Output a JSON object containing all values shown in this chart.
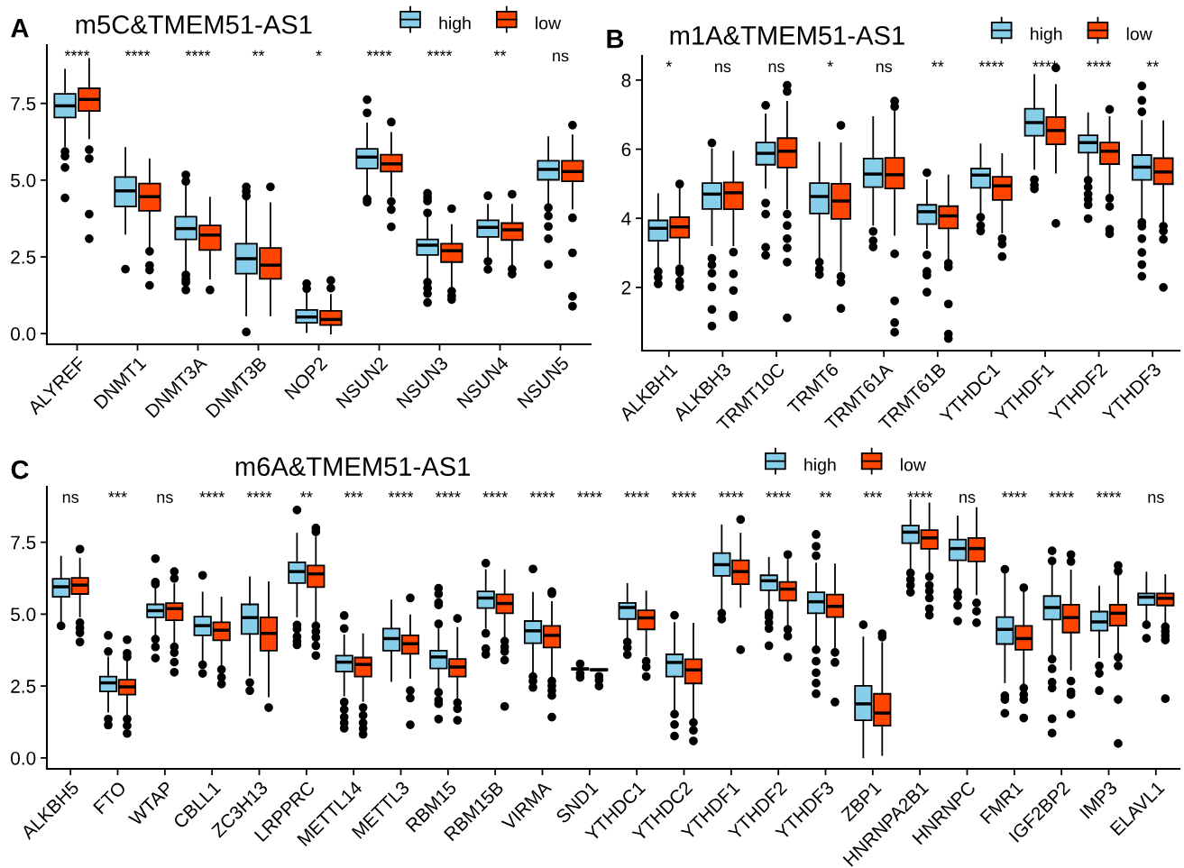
{
  "chart_data": [
    {
      "type": "box",
      "title": "m5C&TMEM51-AS1",
      "legend": "top",
      "ylim": [
        -0.35,
        9.4
      ],
      "yticks": [
        {
          "value": 0,
          "label": "0.0"
        },
        {
          "value": 2.5,
          "label": "2.5"
        },
        {
          "value": 5,
          "label": "5.0"
        },
        {
          "value": 7.5,
          "label": "7.5"
        }
      ],
      "categories": [
        "ALYREF",
        "DNMT1",
        "DNMT3A",
        "DNMT3B",
        "NOP2",
        "NSUN2",
        "NSUN3",
        "NSUN4",
        "NSUN5"
      ],
      "annotations": [
        "A",
        "****",
        "****",
        "****",
        "**",
        "*",
        "****",
        "****",
        "**",
        "ns"
      ],
      "series": [
        {
          "name": "high",
          "color": "#87ceeb",
          "boxes": [
            {
              "low": 6.11,
              "q1": 7.04,
              "median": 7.42,
              "q3": 7.81,
              "high": 8.6,
              "outliers": [
                5.93,
                5.78,
                5.41,
                4.42
              ]
            },
            {
              "low": 3.25,
              "q1": 4.14,
              "median": 4.65,
              "q3": 5.1,
              "high": 6.05,
              "outliers": [
                2.1
              ]
            },
            {
              "low": 2.0,
              "q1": 3.07,
              "median": 3.42,
              "q3": 3.81,
              "high": 4.81,
              "outliers": [
                5.17,
                4.96,
                1.91,
                1.77,
                1.67,
                1.42
              ]
            },
            {
              "low": 0.59,
              "q1": 1.95,
              "median": 2.44,
              "q3": 2.93,
              "high": 4.32,
              "outliers": [
                4.78,
                4.63,
                4.48,
                0.05
              ]
            },
            {
              "low": 0.05,
              "q1": 0.35,
              "median": 0.54,
              "q3": 0.77,
              "high": 1.33,
              "outliers": [
                1.63,
                1.46
              ]
            },
            {
              "low": 4.44,
              "q1": 5.38,
              "median": 5.75,
              "q3": 6.02,
              "high": 6.85,
              "outliers": [
                7.62,
                7.19,
                4.38,
                4.28
              ]
            },
            {
              "low": 1.77,
              "q1": 2.56,
              "median": 2.88,
              "q3": 3.07,
              "high": 3.77,
              "outliers": [
                4.57,
                4.44,
                4.32,
                3.93,
                1.67,
                1.48,
                1.3,
                1.01
              ]
            },
            {
              "low": 2.43,
              "q1": 3.15,
              "median": 3.46,
              "q3": 3.69,
              "high": 4.2,
              "outliers": [
                4.49,
                2.35,
                2.09
              ]
            },
            {
              "low": 4.2,
              "q1": 5.01,
              "median": 5.35,
              "q3": 5.63,
              "high": 6.4,
              "outliers": [
                4.1,
                3.83,
                3.49,
                3.09,
                2.25
              ]
            }
          ]
        },
        {
          "name": "low",
          "color": "#ff4500",
          "boxes": [
            {
              "low": 6.36,
              "q1": 7.25,
              "median": 7.63,
              "q3": 7.99,
              "high": 8.95,
              "outliers": [
                5.99,
                5.7,
                3.89,
                3.09
              ]
            },
            {
              "low": 2.75,
              "q1": 4.0,
              "median": 4.46,
              "q3": 4.89,
              "high": 5.68,
              "outliers": [
                2.68,
                2.22,
                2.07,
                1.57
              ]
            },
            {
              "low": 1.79,
              "q1": 2.72,
              "median": 3.21,
              "q3": 3.52,
              "high": 4.43,
              "outliers": [
                1.42
              ]
            },
            {
              "low": 0.59,
              "q1": 1.78,
              "median": 2.23,
              "q3": 2.79,
              "high": 4.25,
              "outliers": [
                4.78
              ]
            },
            {
              "low": 0.0,
              "q1": 0.28,
              "median": 0.46,
              "q3": 0.74,
              "high": 1.26,
              "outliers": [
                1.73,
                1.48
              ]
            },
            {
              "low": 4.48,
              "q1": 5.28,
              "median": 5.53,
              "q3": 5.83,
              "high": 6.54,
              "outliers": [
                6.89,
                4.3,
                4.04,
                3.48
              ]
            },
            {
              "low": 1.48,
              "q1": 2.33,
              "median": 2.7,
              "q3": 2.93,
              "high": 3.54,
              "outliers": [
                4.07,
                1.38,
                1.23,
                1.11
              ]
            },
            {
              "low": 2.22,
              "q1": 3.05,
              "median": 3.38,
              "q3": 3.6,
              "high": 4.2,
              "outliers": [
                4.54,
                2.1,
                1.94
              ]
            },
            {
              "low": 4.07,
              "q1": 4.96,
              "median": 5.28,
              "q3": 5.63,
              "high": 6.46,
              "outliers": [
                6.79,
                3.77,
                2.63,
                1.21,
                0.89
              ]
            }
          ]
        }
      ]
    },
    {
      "type": "box",
      "title": "m1A&TMEM51-AS1",
      "legend": "top",
      "ylim": [
        0.17,
        8.7
      ],
      "yticks": [
        2,
        4,
        6,
        8
      ],
      "categories": [
        "ALKBH1",
        "ALKBH3",
        "TRMT10C",
        "TRMT6",
        "TRMT61A",
        "TRMT61B",
        "YTHDC1",
        "YTHDF1",
        "YTHDF2",
        "YTHDF3"
      ],
      "annotations": [
        "B",
        "*",
        "ns",
        "ns",
        "*",
        "ns",
        "**",
        "****",
        "****",
        "****",
        "**"
      ],
      "series": [
        {
          "name": "high",
          "color": "#87ceeb",
          "boxes": [
            {
              "low": 2.56,
              "q1": 3.35,
              "median": 3.71,
              "q3": 3.94,
              "high": 4.7,
              "outliers": [
                2.46,
                2.29,
                2.1
              ]
            },
            {
              "low": 3.22,
              "q1": 4.27,
              "median": 4.7,
              "q3": 5.02,
              "high": 6.0,
              "outliers": [
                6.18,
                2.84,
                2.65,
                2.41,
                2.01,
                1.36,
                0.88
              ]
            },
            {
              "low": 4.88,
              "q1": 5.55,
              "median": 5.88,
              "q3": 6.19,
              "high": 7.01,
              "outliers": [
                7.27,
                4.44,
                4.12,
                3.16,
                2.93
              ]
            },
            {
              "low": 2.83,
              "q1": 4.14,
              "median": 4.63,
              "q3": 5.02,
              "high": 6.19,
              "outliers": [
                2.73,
                2.53,
                2.37
              ]
            },
            {
              "low": 3.81,
              "q1": 4.9,
              "median": 5.28,
              "q3": 5.73,
              "high": 6.93,
              "outliers": [
                3.62,
                3.35,
                3.17
              ]
            },
            {
              "low": 3.14,
              "q1": 3.83,
              "median": 4.19,
              "q3": 4.39,
              "high": 5.1,
              "outliers": [
                5.32,
                2.94,
                2.46,
                2.35,
                1.86
              ]
            },
            {
              "low": 4.12,
              "q1": 4.88,
              "median": 5.25,
              "q3": 5.44,
              "high": 6.14,
              "outliers": [
                4.03,
                3.79,
                3.63
              ]
            },
            {
              "low": 5.43,
              "q1": 6.39,
              "median": 6.77,
              "q3": 7.17,
              "high": 8.15,
              "outliers": [
                5.12,
                4.96,
                4.85
              ]
            },
            {
              "low": 5.21,
              "q1": 5.9,
              "median": 6.19,
              "q3": 6.4,
              "high": 7.04,
              "outliers": [
                5.1,
                4.9,
                4.7,
                4.55,
                4.39,
                3.99
              ]
            },
            {
              "low": 4.01,
              "q1": 5.11,
              "median": 5.48,
              "q3": 5.83,
              "high": 6.82,
              "outliers": [
                7.83,
                7.41,
                7.08,
                3.88,
                3.77,
                3.41,
                3.01,
                2.66,
                2.32
              ]
            }
          ]
        },
        {
          "name": "low",
          "color": "#ff4500",
          "boxes": [
            {
              "low": 2.7,
              "q1": 3.44,
              "median": 3.75,
              "q3": 4.03,
              "high": 4.88,
              "outliers": [
                4.99,
                2.54,
                2.43,
                2.18,
                2.02
              ]
            },
            {
              "low": 3.22,
              "q1": 4.26,
              "median": 4.74,
              "q3": 5.04,
              "high": 5.93,
              "outliers": [
                3.02,
                2.39,
                1.91,
                1.2,
                1.14
              ]
            },
            {
              "low": 4.28,
              "q1": 5.47,
              "median": 5.94,
              "q3": 6.32,
              "high": 7.37,
              "outliers": [
                7.85,
                7.67,
                4.12,
                3.79,
                3.41,
                3.14,
                2.73,
                1.12
              ]
            },
            {
              "low": 2.48,
              "q1": 3.98,
              "median": 4.5,
              "q3": 5.0,
              "high": 6.17,
              "outliers": [
                6.69,
                2.32,
                2.15,
                1.39
              ]
            },
            {
              "low": 3.52,
              "q1": 4.86,
              "median": 5.26,
              "q3": 5.75,
              "high": 7.08,
              "outliers": [
                7.39,
                7.23,
                2.97,
                1.61,
                0.98,
                0.7
              ]
            },
            {
              "low": 2.81,
              "q1": 3.71,
              "median": 4.07,
              "q3": 4.35,
              "high": 5.24,
              "outliers": [
                2.7,
                2.59,
                1.52,
                0.65,
                0.52
              ]
            },
            {
              "low": 3.59,
              "q1": 4.53,
              "median": 4.94,
              "q3": 5.2,
              "high": 5.86,
              "outliers": [
                3.41,
                3.25,
                2.89
              ]
            },
            {
              "low": 5.32,
              "q1": 6.14,
              "median": 6.54,
              "q3": 6.93,
              "high": 7.86,
              "outliers": [
                8.35,
                3.85
              ]
            },
            {
              "low": 4.66,
              "q1": 5.57,
              "median": 5.94,
              "q3": 6.19,
              "high": 6.93,
              "outliers": [
                7.15,
                4.58,
                4.34,
                3.68,
                3.55
              ]
            },
            {
              "low": 3.85,
              "q1": 4.99,
              "median": 5.34,
              "q3": 5.74,
              "high": 6.81,
              "outliers": [
                3.77,
                3.63,
                3.39,
                2.0
              ]
            }
          ]
        }
      ]
    },
    {
      "type": "box",
      "title": "m6A&TMEM51-AS1",
      "legend": "top",
      "ylim": [
        -0.38,
        9.43
      ],
      "yticks": [
        {
          "value": 0,
          "label": "0.0"
        },
        {
          "value": 2.5,
          "label": "2.5"
        },
        {
          "value": 5,
          "label": "5.0"
        },
        {
          "value": 7.5,
          "label": "7.5"
        }
      ],
      "categories": [
        "ALKBH5",
        "FTO",
        "WTAP",
        "CBLL1",
        "ZC3H13",
        "LRPPRC",
        "METTL14",
        "METTL3",
        "RBM15",
        "RBM15B",
        "VIRMA",
        "SND1",
        "YTHDC1",
        "YTHDC2",
        "YTHDF1",
        "YTHDF2",
        "YTHDF3",
        "ZBP1",
        "HNRNPA2B1",
        "HNRNPC",
        "FMR1",
        "IGF2BP2",
        "IMP3",
        "ELAVL1"
      ],
      "annotations": [
        "C",
        "ns",
        "***",
        "ns",
        "****",
        "****",
        "**",
        "***",
        "****",
        "****",
        "****",
        "****",
        "****",
        "****",
        "****",
        "****",
        "****",
        "**",
        "***",
        "****",
        "ns",
        "****",
        "****",
        "****",
        "ns"
      ],
      "series": [
        {
          "name": "high",
          "color": "#87ceeb",
          "boxes": [
            {
              "low": 4.63,
              "q1": 5.6,
              "median": 5.95,
              "q3": 6.23,
              "high": 7.0,
              "outliers": [
                4.59
              ]
            },
            {
              "low": 1.61,
              "q1": 2.31,
              "median": 2.61,
              "q3": 2.83,
              "high": 3.49,
              "outliers": [
                4.26,
                3.7,
                1.35,
                1.14
              ]
            },
            {
              "low": 4.26,
              "q1": 4.89,
              "median": 5.12,
              "q3": 5.34,
              "high": 5.98,
              "outliers": [
                6.93,
                6.11,
                6.04,
                4.13,
                3.86,
                3.47
              ]
            },
            {
              "low": 3.33,
              "q1": 4.26,
              "median": 4.6,
              "q3": 4.91,
              "high": 5.75,
              "outliers": [
                6.35,
                3.24,
                2.94
              ]
            },
            {
              "low": 2.87,
              "q1": 4.31,
              "median": 4.88,
              "q3": 5.34,
              "high": 6.28,
              "outliers": [
                2.62,
                2.34
              ]
            },
            {
              "low": 4.92,
              "q1": 6.08,
              "median": 6.48,
              "q3": 6.8,
              "high": 7.8,
              "outliers": [
                8.62,
                4.62,
                4.48,
                4.22,
                4.06,
                3.93
              ]
            },
            {
              "low": 2.17,
              "q1": 3.0,
              "median": 3.33,
              "q3": 3.56,
              "high": 4.26,
              "outliers": [
                4.95,
                4.5,
                1.94,
                1.68,
                1.42,
                1.22,
                1.03
              ]
            },
            {
              "low": 2.67,
              "q1": 3.73,
              "median": 4.15,
              "q3": 4.5,
              "high": 5.48
            },
            {
              "low": 2.31,
              "q1": 3.11,
              "median": 3.51,
              "q3": 3.73,
              "high": 4.52,
              "outliers": [
                5.9,
                5.7,
                5.4,
                5.32,
                4.66,
                2.28,
                2.01,
                1.88,
                1.35
              ]
            },
            {
              "low": 4.52,
              "q1": 5.21,
              "median": 5.56,
              "q3": 5.79,
              "high": 6.53,
              "outliers": [
                6.77,
                4.33,
                3.8,
                3.6
              ]
            },
            {
              "low": 2.94,
              "q1": 3.99,
              "median": 4.42,
              "q3": 4.76,
              "high": 5.74,
              "outliers": [
                6.57,
                2.83,
                2.67,
                2.45
              ]
            },
            {
              "low": 3.07,
              "q1": 3.07,
              "median": 3.09,
              "q3": 3.12,
              "high": 3.12,
              "outliers": [
                3.27,
                2.94,
                2.8
              ]
            },
            {
              "low": 4.1,
              "q1": 4.83,
              "median": 5.23,
              "q3": 5.39,
              "high": 6.05,
              "outliers": [
                4.03,
                3.83,
                3.59
              ]
            },
            {
              "low": 1.63,
              "q1": 2.83,
              "median": 3.32,
              "q3": 3.6,
              "high": 4.69,
              "outliers": [
                4.96,
                1.52,
                1.16,
                0.76
              ]
            },
            {
              "low": 5.16,
              "q1": 6.33,
              "median": 6.72,
              "q3": 7.12,
              "high": 8.09,
              "outliers": [
                5.03,
                4.83
              ]
            },
            {
              "low": 5.16,
              "q1": 5.83,
              "median": 6.16,
              "q3": 6.35,
              "high": 6.96,
              "outliers": [
                5.03,
                4.9,
                4.7,
                4.5,
                3.9
              ]
            },
            {
              "low": 3.87,
              "q1": 5.03,
              "median": 5.43,
              "q3": 5.76,
              "high": 6.76,
              "outliers": [
                7.77,
                7.36,
                7.03,
                3.76,
                3.36,
                2.96,
                2.6,
                2.23
              ]
            },
            {
              "low": 0.02,
              "q1": 1.31,
              "median": 1.88,
              "q3": 2.51,
              "high": 4.19,
              "outliers": [
                4.63
              ]
            },
            {
              "low": 6.49,
              "q1": 7.47,
              "median": 7.85,
              "q3": 8.08,
              "high": 8.96,
              "outliers": [
                6.43,
                6.2,
                6.0,
                5.76
              ]
            },
            {
              "low": 5.9,
              "q1": 6.87,
              "median": 7.28,
              "q3": 7.59,
              "high": 8.4,
              "outliers": [
                5.76,
                5.6,
                5.3,
                4.76
              ]
            },
            {
              "low": 2.63,
              "q1": 3.96,
              "median": 4.47,
              "q3": 4.9,
              "high": 6.43,
              "outliers": [
                6.56,
                2.16,
                2.03,
                1.55
              ]
            },
            {
              "low": 3.56,
              "q1": 4.81,
              "median": 5.23,
              "q3": 5.63,
              "high": 6.76,
              "outliers": [
                7.2,
                6.85,
                3.43,
                3.1,
                2.63,
                2.43,
                1.36,
                0.86
              ]
            },
            {
              "low": 3.5,
              "q1": 4.43,
              "median": 4.73,
              "q3": 5.09,
              "high": 5.96,
              "outliers": [
                3.2,
                2.94,
                2.34
              ]
            },
            {
              "low": 4.76,
              "q1": 5.32,
              "median": 5.59,
              "q3": 5.72,
              "high": 6.45,
              "outliers": [
                4.63,
                4.16
              ]
            }
          ]
        },
        {
          "name": "low",
          "color": "#ff4500",
          "boxes": [
            {
              "low": 4.92,
              "q1": 5.7,
              "median": 6.01,
              "q3": 6.26,
              "high": 6.93,
              "outliers": [
                7.26,
                4.7,
                4.52,
                4.35,
                4.03
              ]
            },
            {
              "low": 1.48,
              "q1": 2.2,
              "median": 2.47,
              "q3": 2.72,
              "high": 3.4,
              "outliers": [
                4.11,
                3.64,
                3.51,
                1.35,
                1.12,
                0.85
              ]
            },
            {
              "low": 3.97,
              "q1": 4.79,
              "median": 5.19,
              "q3": 5.38,
              "high": 6.04,
              "outliers": [
                6.48,
                6.24,
                3.86,
                3.66,
                3.33,
                2.98
              ]
            },
            {
              "low": 3.13,
              "q1": 4.09,
              "median": 4.44,
              "q3": 4.72,
              "high": 5.58,
              "outliers": [
                3.07,
                2.8,
                2.57
              ]
            },
            {
              "low": 2.14,
              "q1": 3.73,
              "median": 4.33,
              "q3": 4.89,
              "high": 6.11,
              "outliers": [
                1.75
              ]
            },
            {
              "low": 4.75,
              "q1": 5.94,
              "median": 6.4,
              "q3": 6.69,
              "high": 7.67,
              "outliers": [
                7.99,
                7.86,
                4.59,
                4.39,
                4.19,
                3.9,
                3.56
              ]
            },
            {
              "low": 1.98,
              "q1": 2.83,
              "median": 3.25,
              "q3": 3.49,
              "high": 4.3,
              "outliers": [
                1.75,
                1.48,
                1.22,
                1.02,
                0.82
              ]
            },
            {
              "low": 2.78,
              "q1": 3.62,
              "median": 3.97,
              "q3": 4.26,
              "high": 4.96,
              "outliers": [
                5.56,
                2.34,
                2.08,
                1.15
              ]
            },
            {
              "low": 2.08,
              "q1": 2.83,
              "median": 3.16,
              "q3": 3.44,
              "high": 4.52,
              "outliers": [
                4.85,
                1.92,
                1.71,
                1.31
              ]
            },
            {
              "low": 4.17,
              "q1": 5.03,
              "median": 5.37,
              "q3": 5.69,
              "high": 6.53,
              "outliers": [
                4.06,
                3.86,
                3.7,
                3.4,
                1.79
              ]
            },
            {
              "low": 2.76,
              "q1": 3.84,
              "median": 4.26,
              "q3": 4.59,
              "high": 5.42,
              "outliers": [
                5.78,
                5.71,
                2.67,
                2.51,
                2.34,
                2.17,
                1.42
              ]
            },
            {
              "low": 3.04,
              "q1": 3.04,
              "median": 3.06,
              "q3": 3.09,
              "high": 3.09,
              "outliers": [
                2.84,
                2.7,
                2.5
              ]
            },
            {
              "low": 3.56,
              "q1": 4.47,
              "median": 4.87,
              "q3": 5.13,
              "high": 5.79,
              "outliers": [
                3.36,
                3.16,
                2.83
              ]
            },
            {
              "low": 1.36,
              "q1": 2.59,
              "median": 3.06,
              "q3": 3.43,
              "high": 4.67,
              "outliers": [
                1.23,
                0.96,
                0.59
              ]
            },
            {
              "low": 5.25,
              "q1": 6.04,
              "median": 6.48,
              "q3": 6.87,
              "high": 7.8,
              "outliers": [
                8.29,
                3.76
              ]
            },
            {
              "low": 4.56,
              "q1": 5.47,
              "median": 5.87,
              "q3": 6.12,
              "high": 6.89,
              "outliers": [
                7.07,
                4.47,
                4.23,
                3.5
              ]
            },
            {
              "low": 3.76,
              "q1": 4.9,
              "median": 5.27,
              "q3": 5.68,
              "high": 6.73,
              "outliers": [
                3.67,
                3.32,
                1.94
              ]
            },
            {
              "low": 0.1,
              "q1": 1.12,
              "median": 1.56,
              "q3": 2.23,
              "high": 4.0,
              "outliers": [
                4.32,
                4.2
              ]
            },
            {
              "low": 6.36,
              "q1": 7.27,
              "median": 7.65,
              "q3": 7.92,
              "high": 8.85,
              "outliers": [
                6.3,
                6.0,
                5.8,
                5.56,
                5.19,
                4.96
              ]
            },
            {
              "low": 5.69,
              "q1": 6.83,
              "median": 7.28,
              "q3": 7.65,
              "high": 8.69,
              "outliers": [
                5.39,
                5.1,
                4.7
              ]
            },
            {
              "low": 2.56,
              "q1": 3.76,
              "median": 4.15,
              "q3": 4.59,
              "high": 5.89,
              "outliers": [
                5.92,
                2.43,
                2.2,
                2.03,
                1.39
              ]
            },
            {
              "low": 3.07,
              "q1": 4.36,
              "median": 4.88,
              "q3": 5.33,
              "high": 6.52,
              "outliers": [
                7.07,
                6.83,
                2.67,
                2.3,
                2.2,
                1.52
              ]
            },
            {
              "low": 3.63,
              "q1": 4.6,
              "median": 5.03,
              "q3": 5.33,
              "high": 6.63,
              "outliers": [
                6.69,
                6.49,
                3.5,
                3.2,
                2.03,
                0.5
              ]
            },
            {
              "low": 4.63,
              "q1": 5.3,
              "median": 5.55,
              "q3": 5.72,
              "high": 6.36,
              "outliers": [
                4.56,
                4.4,
                4.25,
                4.1,
                2.06
              ]
            }
          ]
        }
      ]
    }
  ]
}
